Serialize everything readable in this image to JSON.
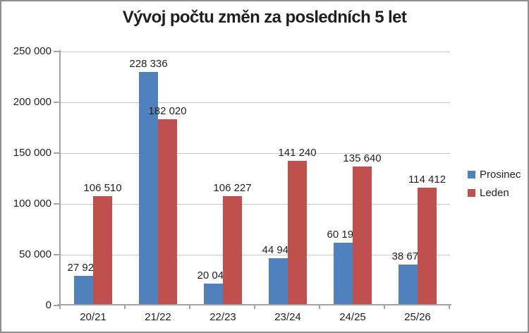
{
  "chart_data": {
    "type": "bar",
    "title": "Vývoj počtu změn za posledních 5 let",
    "categories": [
      "20/21",
      "21/22",
      "22/23",
      "23/24",
      "24/25",
      "25/26"
    ],
    "series": [
      {
        "name": "Prosinec",
        "color": "#4F81BD",
        "values": [
          27926,
          228336,
          20045,
          44944,
          60193,
          38678
        ],
        "labels": [
          "27 926",
          "228 336",
          "20 045",
          "44 944",
          "60 193",
          "38 678"
        ]
      },
      {
        "name": "Leden",
        "color": "#C0504D",
        "values": [
          106510,
          182020,
          106227,
          141240,
          135640,
          114412
        ],
        "labels": [
          "106 510",
          "182 020",
          "106 227",
          "141 240",
          "135 640",
          "114 412"
        ]
      }
    ],
    "ylim": [
      0,
      250000
    ],
    "yticks": [
      {
        "value": 250000,
        "label": "250 000"
      },
      {
        "value": 200000,
        "label": "200 000"
      },
      {
        "value": 150000,
        "label": "150 000"
      },
      {
        "value": 100000,
        "label": "100 000"
      },
      {
        "value": 50000,
        "label": "50 000"
      },
      {
        "value": 0,
        "label": "0"
      }
    ],
    "grid": "horizontal",
    "legend_position": "right",
    "data_labels": true
  },
  "colors": {
    "series_prosinec": "#4F81BD",
    "series_leden": "#C0504D",
    "gridline": "#C9C9C9",
    "axis": "#A3A3A3",
    "frame_border": "#8F8F8F",
    "text": "#1F1F1F",
    "background": "#FFFFFF"
  }
}
